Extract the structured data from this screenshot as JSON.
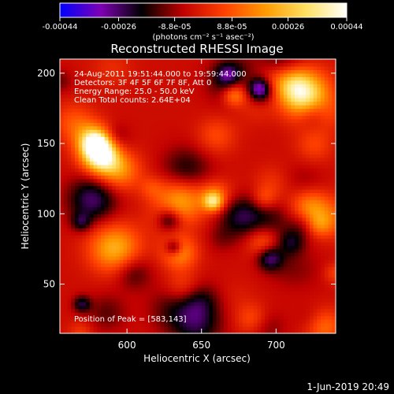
{
  "chart_data": {
    "type": "heatmap",
    "title": "Reconstructed RHESSI Image",
    "xlabel": "Heliocentric X (arcsec)",
    "ylabel": "Heliocentric Y (arcsec)",
    "xlim": [
      555,
      740
    ],
    "ylim": [
      15,
      210
    ],
    "xticks": [
      600,
      650,
      700
    ],
    "yticks": [
      50,
      100,
      150,
      200
    ],
    "colorbar": {
      "min": -0.00044,
      "max": 0.00044,
      "ticks": [
        {
          "value": -0.00044,
          "label": "-0.00044"
        },
        {
          "value": -0.00026,
          "label": "-0.00026"
        },
        {
          "value": -8.8e-05,
          "label": "-8.8e-05"
        },
        {
          "value": 8.8e-05,
          "label": "8.8e-05"
        },
        {
          "value": 0.00026,
          "label": "0.00026"
        },
        {
          "value": 0.00044,
          "label": "0.00044"
        }
      ],
      "units": "(photons cm⁻² s⁻¹ asec⁻²)",
      "colors": [
        "#0000ff",
        "#7f00b4",
        "#000000",
        "#c00000",
        "#ff4000",
        "#ff9900",
        "#ffe060",
        "#ffffff"
      ]
    },
    "annotations": [
      "24-Aug-2011 19:51:44.000 to 19:59:44.000",
      "Detectors: 3F 4F 5F 6F 7F 8F, Att 0",
      "Energy Range: 25.0 - 50.0 keV",
      "Clean    Total counts: 2.64E+04"
    ],
    "peak_label": "Position of Peak = [583,143]",
    "peak": [
      583,
      143
    ]
  },
  "footer": {
    "date": "1-Jun-2019 20:49"
  }
}
